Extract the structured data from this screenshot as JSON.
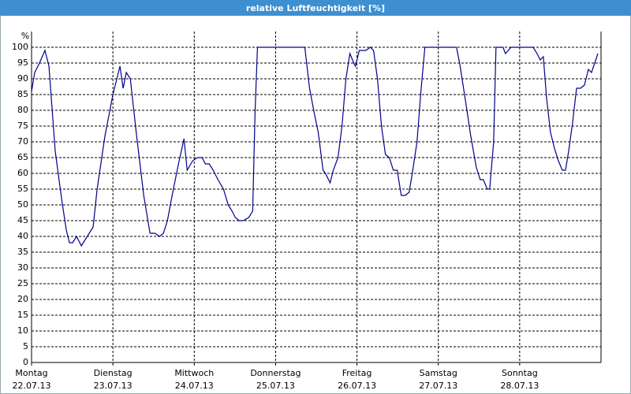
{
  "chart_data": {
    "type": "line",
    "title": "relative Luftfeuchtigkeit [%]",
    "ylabel": "%",
    "xlim": [
      0,
      7
    ],
    "ylim": [
      0,
      100
    ],
    "yticks": [
      0,
      5,
      10,
      15,
      20,
      25,
      30,
      35,
      40,
      45,
      50,
      55,
      60,
      65,
      70,
      75,
      80,
      85,
      90,
      95,
      100
    ],
    "xticks": [
      {
        "value": 0,
        "label": "Montag",
        "date": "22.07.13"
      },
      {
        "value": 1,
        "label": "Dienstag",
        "date": "23.07.13"
      },
      {
        "value": 2,
        "label": "Mittwoch",
        "date": "24.07.13"
      },
      {
        "value": 3,
        "label": "Donnerstag",
        "date": "25.07.13"
      },
      {
        "value": 4,
        "label": "Freitag",
        "date": "26.07.13"
      },
      {
        "value": 5,
        "label": "Samstag",
        "date": "27.07.13"
      },
      {
        "value": 6,
        "label": "Sonntag",
        "date": "28.07.13"
      }
    ],
    "grid": true,
    "series": [
      {
        "color": "#00008b",
        "x": [
          0,
          0.039,
          0.097,
          0.165,
          0.214,
          0.291,
          0.369,
          0.427,
          0.466,
          0.505,
          0.553,
          0.612,
          0.66,
          0.709,
          0.757,
          0.806,
          0.903,
          1.0,
          1.087,
          1.126,
          1.165,
          1.214,
          1.291,
          1.379,
          1.456,
          1.515,
          1.573,
          1.621,
          1.67,
          1.728,
          1.806,
          1.874,
          1.913,
          1.981,
          2.039,
          2.097,
          2.136,
          2.184,
          2.233,
          2.291,
          2.359,
          2.417,
          2.466,
          2.505,
          2.553,
          2.602,
          2.67,
          2.718,
          2.748,
          2.777,
          2.913,
          3.107,
          3.252,
          3.359,
          3.417,
          3.476,
          3.524,
          3.583,
          3.612,
          3.67,
          3.709,
          3.767,
          3.816,
          3.864,
          3.913,
          3.961,
          3.981,
          4.029,
          4.107,
          4.165,
          4.204,
          4.252,
          4.301,
          4.35,
          4.398,
          4.447,
          4.495,
          4.544,
          4.592,
          4.641,
          4.68,
          4.738,
          4.786,
          4.835,
          5.049,
          5.223,
          5.262,
          5.34,
          5.398,
          5.466,
          5.515,
          5.553,
          5.602,
          5.631,
          5.68,
          5.709,
          5.796,
          5.825,
          5.893,
          5.971,
          6.117,
          6.165,
          6.214,
          6.252,
          6.291,
          6.33,
          6.379,
          6.427,
          6.476,
          6.524,
          6.563,
          6.602,
          6.65,
          6.699,
          6.748,
          6.796,
          6.845,
          6.883,
          6.922,
          6.961
        ],
        "values": [
          86,
          92,
          95,
          99,
          94,
          67,
          52,
          42,
          38,
          38,
          40,
          37,
          39,
          41,
          43,
          55,
          72,
          85,
          94,
          87,
          92,
          90,
          72,
          53,
          41,
          41,
          40,
          41,
          45,
          53,
          63,
          71,
          61,
          64,
          65,
          65,
          63,
          63,
          61,
          58,
          55,
          50,
          48,
          46,
          45,
          45,
          46,
          48,
          80,
          100,
          100,
          100,
          100,
          100,
          87,
          79,
          73,
          61,
          60,
          57,
          61,
          65,
          75,
          90,
          98,
          95,
          94,
          99,
          99,
          100,
          99,
          90,
          75,
          66,
          65,
          61,
          61,
          53,
          53,
          54,
          60,
          70,
          86,
          100,
          100,
          100,
          95,
          82,
          72,
          62,
          58,
          58,
          55,
          55,
          70,
          100,
          100,
          98,
          100,
          100,
          100,
          100,
          98,
          96,
          97,
          84,
          73,
          68,
          64,
          61,
          61,
          67,
          76,
          87,
          87,
          88,
          93,
          92,
          95,
          98
        ]
      }
    ]
  }
}
